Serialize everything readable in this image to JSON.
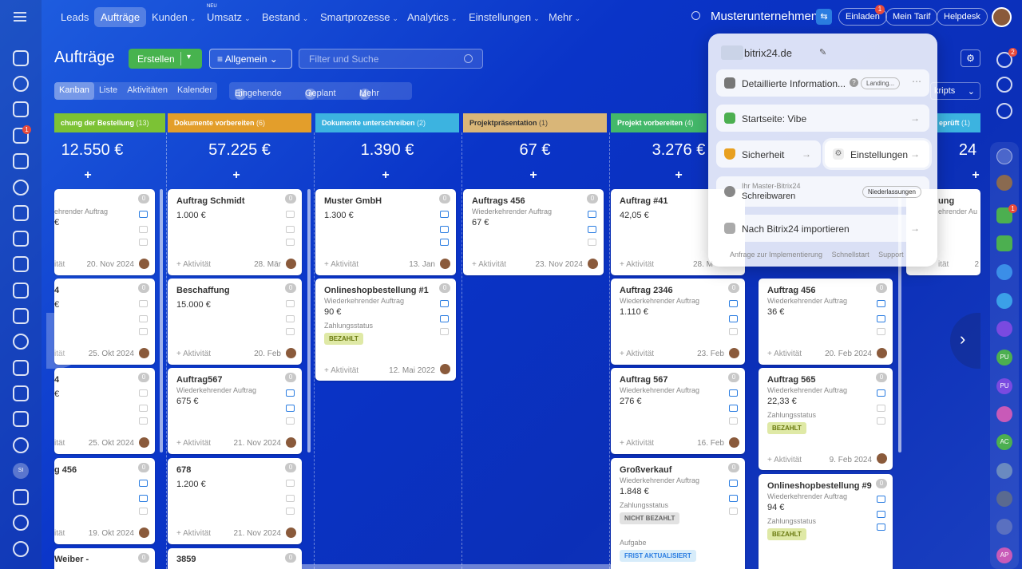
{
  "topbar": {
    "nav": [
      {
        "label": "Leads",
        "active": false,
        "chev": false,
        "neu": false
      },
      {
        "label": "Aufträge",
        "active": true,
        "chev": false,
        "neu": false
      },
      {
        "label": "Kunden",
        "active": false,
        "chev": true,
        "neu": false
      },
      {
        "label": "Umsatz",
        "active": false,
        "chev": true,
        "neu": true
      },
      {
        "label": "Bestand",
        "active": false,
        "chev": true,
        "neu": false
      },
      {
        "label": "Smartprozesse",
        "active": false,
        "chev": true,
        "neu": false
      },
      {
        "label": "Analytics",
        "active": false,
        "chev": true,
        "neu": false
      },
      {
        "label": "Einstellungen",
        "active": false,
        "chev": true,
        "neu": false
      },
      {
        "label": "Mehr",
        "active": false,
        "chev": true,
        "neu": false
      }
    ],
    "neu_label": "NEU",
    "company": "Musterunternehmen",
    "invite": "Einladen",
    "invite_badge": "1",
    "my_plan": "Mein Tarif",
    "helpdesk": "Helpdesk"
  },
  "toolbar": {
    "title": "Aufträge",
    "create": "Erstellen",
    "filter": "Allgemein",
    "search_placeholder": "Filter und Suche",
    "views": [
      "Kanban",
      "Liste",
      "Aktivitäten",
      "Kalender"
    ],
    "counters": [
      {
        "count": "0",
        "label": "Eingehende"
      },
      {
        "count": "0",
        "label": "Geplant"
      },
      {
        "count": "1",
        "label": "Mehr"
      }
    ],
    "scripts_label": "kripts"
  },
  "stages": [
    {
      "name": "chung der Bestellung",
      "count": "(13)",
      "sum": "12.550 €"
    },
    {
      "name": "Dokumente vorbereiten",
      "count": "(6)",
      "sum": "57.225 €"
    },
    {
      "name": "Dokumente unterschreiben",
      "count": "(2)",
      "sum": "1.390 €"
    },
    {
      "name": "Projektpräsentation",
      "count": "(1)",
      "sum": "67 €"
    },
    {
      "name": "Projekt vorbereiten",
      "count": "(4)",
      "sum": "3.276 €"
    },
    {
      "name": "eprüft",
      "count": "(1)",
      "sum": "24"
    }
  ],
  "plus": "+",
  "activity_label": "+ Aktivität",
  "cards": {
    "col1": [
      {
        "name": "",
        "sub": "ehrender Auftrag",
        "amount": "€",
        "date": "20. Nov 2024",
        "act": "ität"
      },
      {
        "name": "4",
        "sub": "",
        "amount": "€",
        "date": "25. Okt 2024",
        "act": "ität"
      },
      {
        "name": "4",
        "sub": "",
        "amount": "€",
        "date": "25. Okt 2024",
        "act": "ität"
      },
      {
        "name": "g 456",
        "sub": "",
        "amount": "",
        "date": "19. Okt 2024",
        "act": "ität"
      },
      {
        "name": "Weiber -",
        "sub": "",
        "amount": "",
        "date": "",
        "act": ""
      }
    ],
    "col2": [
      {
        "name": "Auftrag Schmidt",
        "sub": "",
        "amount": "1.000 €",
        "date": "28. Mär"
      },
      {
        "name": "Beschaffung",
        "sub": "",
        "amount": "15.000 €",
        "date": "20. Feb"
      },
      {
        "name": "Auftrag567",
        "sub": "Wiederkehrender Auftrag",
        "amount": "675 €",
        "date": "21. Nov 2024"
      },
      {
        "name": "678",
        "sub": "",
        "amount": "1.200 €",
        "date": "21. Nov 2024"
      },
      {
        "name": "3859",
        "sub": "",
        "amount": "",
        "date": ""
      }
    ],
    "col3": [
      {
        "name": "Muster GmbH",
        "sub": "",
        "amount": "1.300 €",
        "date": "13. Jan"
      },
      {
        "name": "Onlineshopbestellung #1",
        "sub": "Wiederkehrender Auftrag",
        "amount": "90 €",
        "status": "Zahlungsstatus",
        "tag": "BEZAHLT",
        "date": "12. Mai 2022"
      }
    ],
    "col4": [
      {
        "name": "Auftrags 456",
        "sub": "Wiederkehrender Auftrag",
        "amount": "67 €",
        "date": "23. Nov 2024"
      }
    ],
    "col5": [
      {
        "name": "Auftrag #41",
        "sub": "",
        "amount": "42,05 €",
        "date": "28. M"
      },
      {
        "name": "Auftrag 2346",
        "sub": "Wiederkehrender Auftrag",
        "amount": "1.110 €",
        "date": "23. Feb"
      },
      {
        "name": "Auftrag 567",
        "sub": "Wiederkehrender Auftrag",
        "amount": "276 €",
        "date": "16. Feb"
      },
      {
        "name": "Großverkauf",
        "sub": "Wiederkehrender Auftrag",
        "amount": "1.848 €",
        "status": "Zahlungsstatus",
        "tag": "NICHT BEZAHLT",
        "task": "Aufgabe",
        "tag2": "FRIST AKTUALISIERT"
      }
    ],
    "col6": [
      {
        "name": "Auftrag 456",
        "sub": "Wiederkehrender Auftrag",
        "amount": "36 €",
        "date": "20. Feb 2024"
      },
      {
        "name": "Auftrag 565",
        "sub": "Wiederkehrender Auftrag",
        "amount": "22,33 €",
        "status": "Zahlungsstatus",
        "tag": "BEZAHLT",
        "date": "9. Feb 2024"
      },
      {
        "name": "Onlineshopbestellung #9",
        "sub": "Wiederkehrender Auftrag",
        "amount": "94 €",
        "status": "Zahlungsstatus",
        "tag": "BEZAHLT"
      }
    ],
    "col7": [
      {
        "name": "ung",
        "sub": "ehrender Au",
        "act": "ität",
        "date": "2"
      }
    ]
  },
  "badge_zero": "0",
  "popup": {
    "domain": "bitrix24.de",
    "detail": "Detaillierte Information...",
    "landing": "Landing...",
    "homepage": "Startseite: Vibe",
    "security": "Sicherheit",
    "settings": "Einstellungen",
    "master_label": "Ihr Master-Bitrix24",
    "master_name": "Schreibwaren",
    "branches": "Niederlassungen",
    "import": "Nach Bitrix24 importieren",
    "links": [
      "Anfrage zur Implementierung",
      "Schnellstart",
      "Support"
    ]
  },
  "sidebar_badges": {
    "left_chat": "1",
    "right_top": "2",
    "right_lock": "1"
  },
  "left_avatar": "SI",
  "right_avatars": [
    "PU",
    "PU",
    "AC",
    "AP"
  ],
  "colors": {
    "green": "#47b34e",
    "accent": "#2b7de1"
  }
}
